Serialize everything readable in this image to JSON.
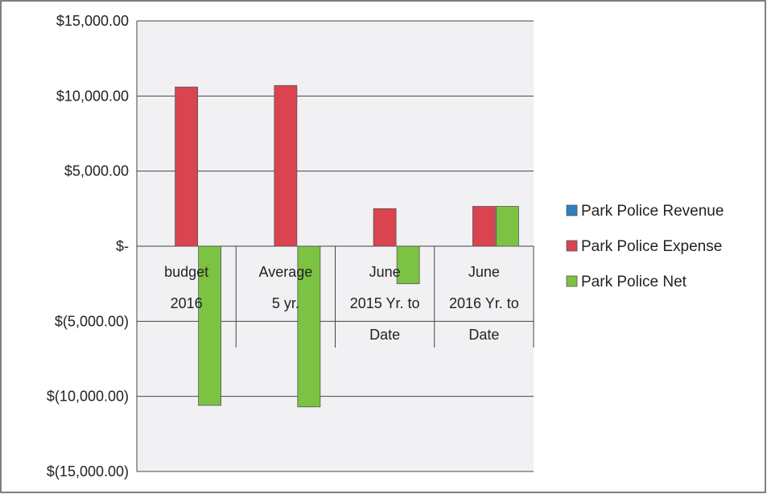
{
  "chart_data": {
    "type": "bar",
    "categories": [
      [
        "budget",
        "2016"
      ],
      [
        "Average",
        "5 yr."
      ],
      [
        "June",
        "2015 Yr. to",
        "Date"
      ],
      [
        "June",
        "2016 Yr. to",
        "Date"
      ]
    ],
    "series": [
      {
        "name": "Park Police Revenue",
        "color": "#2e7fc0",
        "values": [
          0,
          0,
          0,
          0
        ]
      },
      {
        "name": "Park Police Expense",
        "color": "#d9444f",
        "values": [
          10600,
          10700,
          2500,
          2650
        ]
      },
      {
        "name": "Park Police Net",
        "color": "#7cc243",
        "values": [
          -10600,
          -10700,
          -2500,
          2650
        ]
      }
    ],
    "y_ticks": [
      "$15,000.00",
      "$10,000.00",
      "$5,000.00",
      "$-",
      "$(5,000.00)",
      "$(10,000.00)",
      "$(15,000.00)"
    ],
    "ylim": [
      -15000,
      15000
    ],
    "y_step": 5000,
    "grid": true,
    "legend_position": "right"
  }
}
